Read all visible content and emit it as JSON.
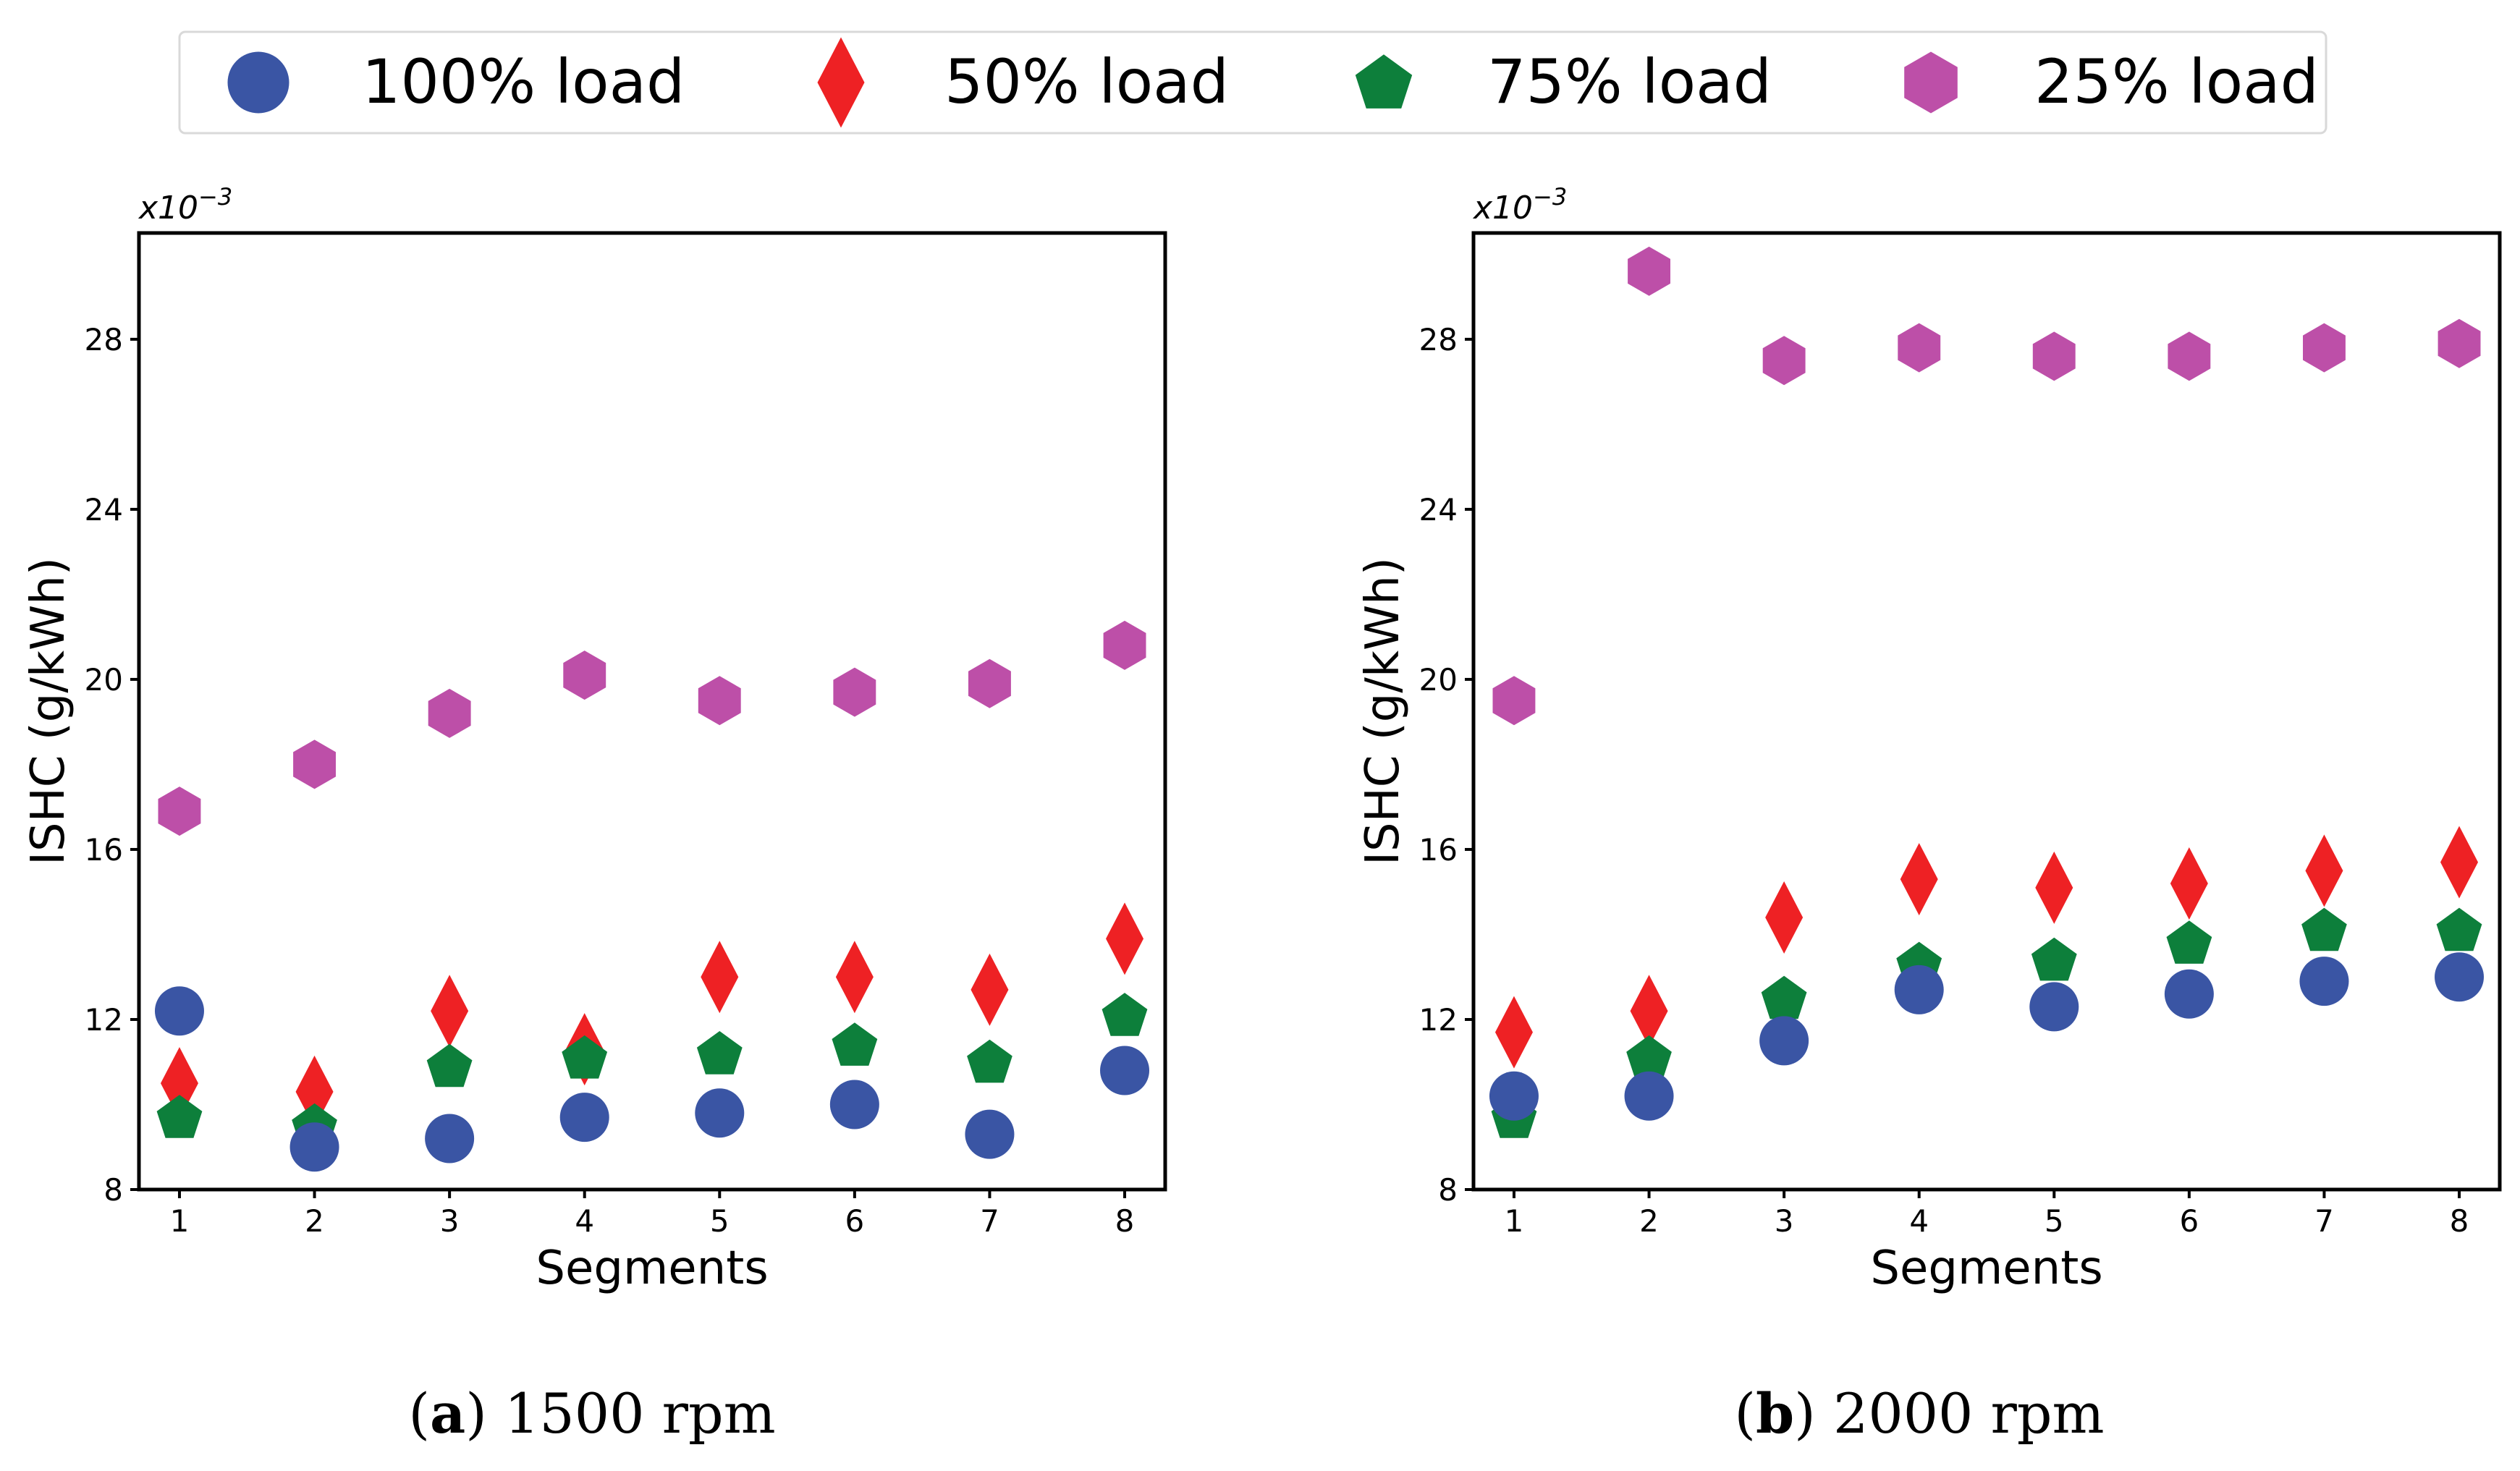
{
  "legend": [
    {
      "label": "100% load",
      "marker": "circle",
      "color": "#3a55a4"
    },
    {
      "label": "50% load",
      "marker": "diamond",
      "color": "#ee2124"
    },
    {
      "label": "75% load",
      "marker": "pentagon",
      "color": "#0d7f3b"
    },
    {
      "label": "25% load",
      "marker": "hexagon",
      "color": "#bd4fa8"
    }
  ],
  "chart_data": [
    {
      "type": "scatter",
      "caption_letter": "a",
      "caption_text": " 1500 rpm",
      "xlabel": "Segments",
      "ylabel": "ISHC (g/kWh)",
      "y_multiplier": "x10",
      "y_multiplier_exp": "−3",
      "x": [
        1,
        2,
        3,
        4,
        5,
        6,
        7,
        8
      ],
      "xlim": [
        0.7,
        8.3
      ],
      "ylim": [
        8,
        30.5
      ],
      "yticks": [
        8,
        12,
        16,
        20,
        24,
        28
      ],
      "series": [
        {
          "name": "100% load",
          "values": [
            12.2,
            9.0,
            9.2,
            9.7,
            9.8,
            10.0,
            9.3,
            10.8
          ]
        },
        {
          "name": "50% load",
          "values": [
            10.5,
            10.3,
            12.2,
            11.3,
            13.0,
            13.0,
            12.7,
            13.9
          ]
        },
        {
          "name": "75% load",
          "values": [
            9.7,
            9.5,
            10.9,
            11.1,
            11.2,
            11.4,
            11.0,
            12.1
          ]
        },
        {
          "name": "25% load",
          "values": [
            16.9,
            18.0,
            19.2,
            20.1,
            19.5,
            19.7,
            19.9,
            20.8
          ]
        }
      ]
    },
    {
      "type": "scatter",
      "caption_letter": "b",
      "caption_text": " 2000 rpm",
      "xlabel": "Segments",
      "ylabel": "ISHC (g/kWh)",
      "y_multiplier": "x10",
      "y_multiplier_exp": "−3",
      "x": [
        1,
        2,
        3,
        4,
        5,
        6,
        7,
        8
      ],
      "xlim": [
        0.7,
        8.3
      ],
      "ylim": [
        8,
        30.5
      ],
      "yticks": [
        8,
        12,
        16,
        20,
        24,
        28
      ],
      "series": [
        {
          "name": "100% load",
          "values": [
            10.2,
            10.2,
            11.5,
            12.7,
            12.3,
            12.6,
            12.9,
            13.0
          ]
        },
        {
          "name": "50% load",
          "values": [
            11.7,
            12.2,
            14.4,
            15.3,
            15.1,
            15.2,
            15.5,
            15.7
          ]
        },
        {
          "name": "75% load",
          "values": [
            9.7,
            11.1,
            12.5,
            13.3,
            13.4,
            13.8,
            14.1,
            14.1
          ]
        },
        {
          "name": "25% load",
          "values": [
            19.5,
            29.6,
            27.5,
            27.8,
            27.6,
            27.6,
            27.8,
            27.9
          ]
        }
      ]
    }
  ]
}
